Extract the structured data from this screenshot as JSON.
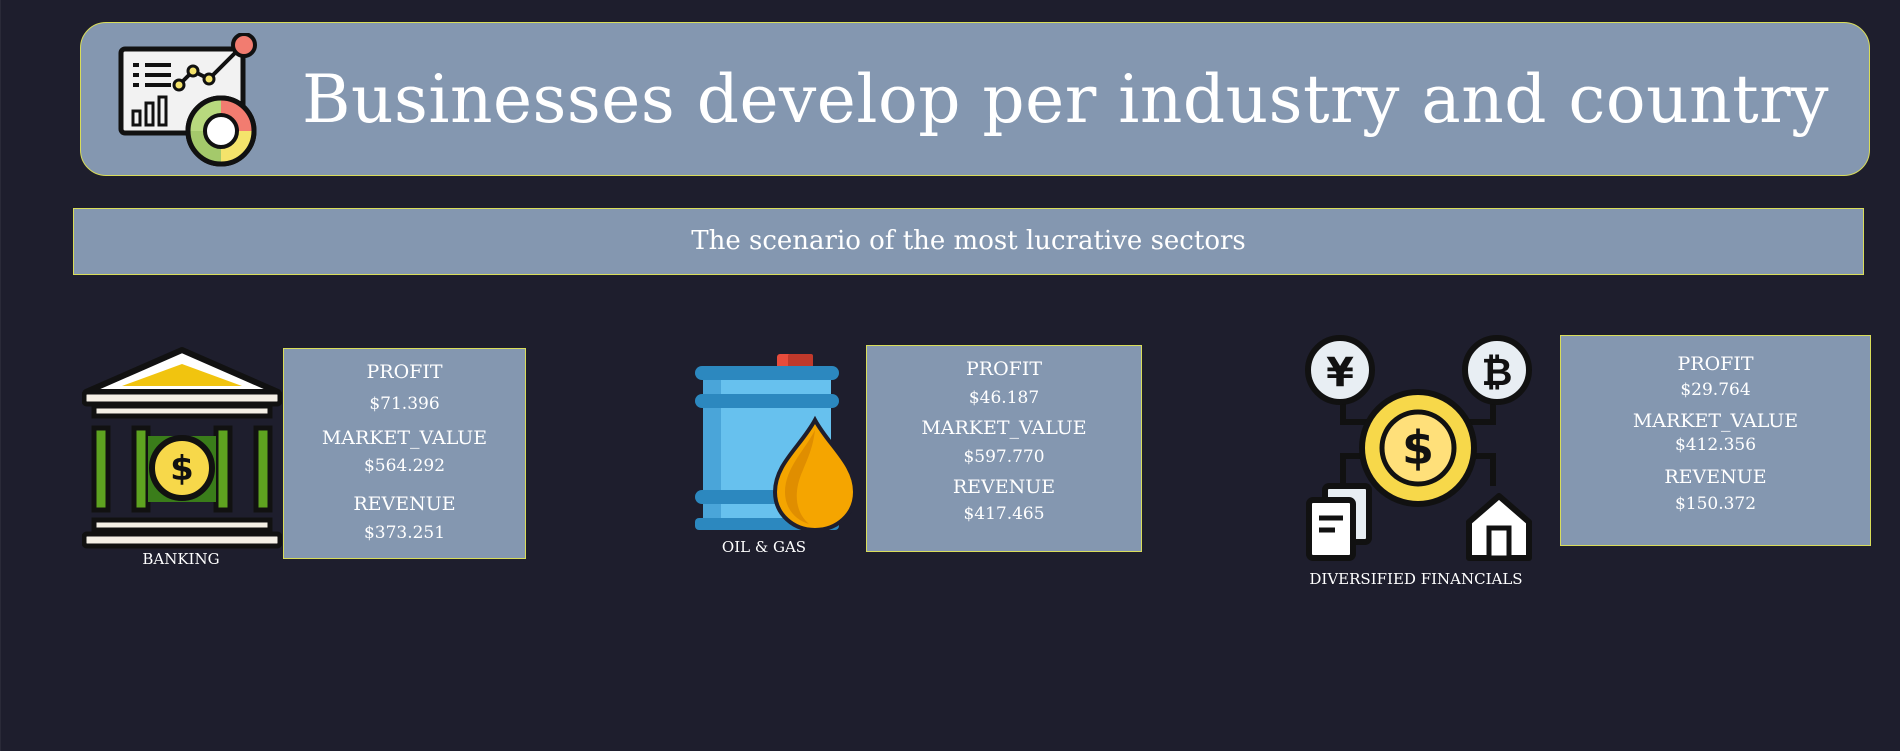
{
  "header": {
    "title": "Businesses develop per industry and country",
    "icon": "analytics-dashboard-icon"
  },
  "subheader": {
    "text": "The scenario of the most lucrative sectors"
  },
  "sectors": [
    {
      "name": "BANKING",
      "icon": "bank-icon",
      "profit_label": "PROFIT",
      "profit": "$71.396",
      "market_value_label": "MARKET_VALUE",
      "market_value": "$564.292",
      "revenue_label": "REVENUE",
      "revenue": "$373.251"
    },
    {
      "name": "OIL & GAS",
      "icon": "oil-barrel-icon",
      "profit_label": "PROFIT",
      "profit": "$46.187",
      "market_value_label": "MARKET_VALUE",
      "market_value": "$597.770",
      "revenue_label": "REVENUE",
      "revenue": "$417.465"
    },
    {
      "name": "DIVERSIFIED FINANCIALS",
      "icon": "financial-network-icon",
      "profit_label": "PROFIT",
      "profit": "$29.764",
      "market_value_label": "MARKET_VALUE",
      "market_value": "$412.356",
      "revenue_label": "REVENUE",
      "revenue": "$150.372"
    }
  ],
  "colors": {
    "background": "#1e1e2d",
    "panel": "#8497b0",
    "panel_border": "#d9dd5a",
    "text": "#ffffff"
  }
}
